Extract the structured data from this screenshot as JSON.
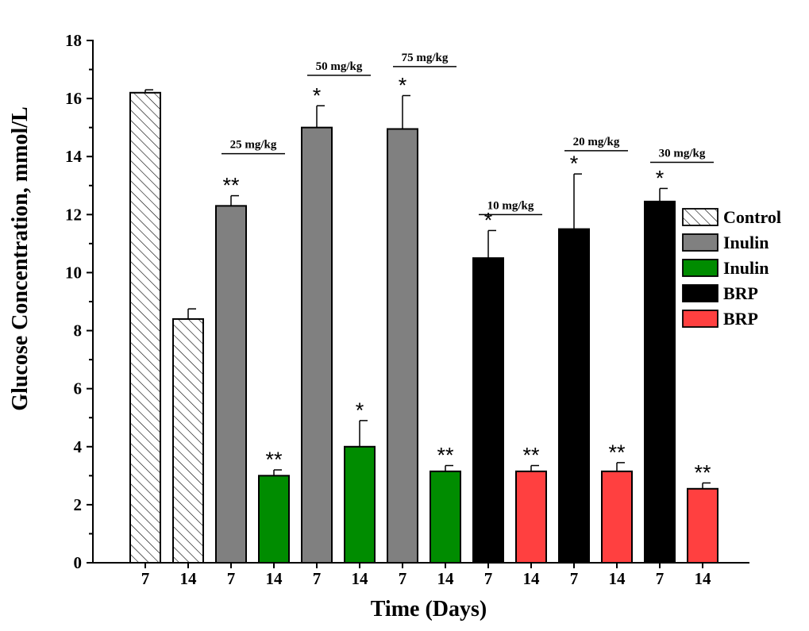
{
  "chart_data": {
    "type": "bar",
    "title": "",
    "xlabel": "Time (Days)",
    "ylabel": "Glucose Concentration, mmol/L",
    "ylim": [
      0,
      18
    ],
    "yticks": [
      0,
      2,
      4,
      6,
      8,
      10,
      12,
      14,
      16,
      18
    ],
    "colors": {
      "Control": "#ffffff",
      "Inulin7": "#808080",
      "Inulin14": "#008c00",
      "BRP7": "#000000",
      "BRP14": "#ff4040"
    },
    "bars": [
      {
        "label": "7",
        "group": "Control",
        "value": 16.2,
        "error": 0.1,
        "sig": ""
      },
      {
        "label": "14",
        "group": "Control",
        "value": 8.4,
        "error": 0.35,
        "sig": ""
      },
      {
        "label": "7",
        "group": "Inulin7",
        "value": 12.3,
        "error": 0.35,
        "sig": "**"
      },
      {
        "label": "14",
        "group": "Inulin14",
        "value": 3.0,
        "error": 0.2,
        "sig": "**"
      },
      {
        "label": "7",
        "group": "Inulin7",
        "value": 15.0,
        "error": 0.75,
        "sig": "*"
      },
      {
        "label": "14",
        "group": "Inulin14",
        "value": 4.0,
        "error": 0.9,
        "sig": "*"
      },
      {
        "label": "7",
        "group": "Inulin7",
        "value": 14.95,
        "error": 1.15,
        "sig": "*"
      },
      {
        "label": "14",
        "group": "Inulin14",
        "value": 3.15,
        "error": 0.2,
        "sig": "**"
      },
      {
        "label": "7",
        "group": "BRP7",
        "value": 10.5,
        "error": 0.95,
        "sig": "*"
      },
      {
        "label": "14",
        "group": "BRP14",
        "value": 3.15,
        "error": 0.2,
        "sig": "**"
      },
      {
        "label": "7",
        "group": "BRP7",
        "value": 11.5,
        "error": 1.9,
        "sig": "*"
      },
      {
        "label": "14",
        "group": "BRP14",
        "value": 3.15,
        "error": 0.3,
        "sig": "**"
      },
      {
        "label": "7",
        "group": "BRP7",
        "value": 12.45,
        "error": 0.45,
        "sig": "*"
      },
      {
        "label": "14",
        "group": "BRP14",
        "value": 2.55,
        "error": 0.2,
        "sig": "**"
      }
    ],
    "dose_labels": [
      {
        "text": "25 mg/kg",
        "bar": 2,
        "level": 14.1
      },
      {
        "text": "50 mg/kg",
        "bar": 4,
        "level": 16.8
      },
      {
        "text": "75 mg/kg",
        "bar": 6,
        "level": 17.1
      },
      {
        "text": "10 mg/kg",
        "bar": 8,
        "level": 12.0
      },
      {
        "text": "20 mg/kg",
        "bar": 10,
        "level": 14.2
      },
      {
        "text": "30 mg/kg",
        "bar": 12,
        "level": 13.8
      }
    ],
    "legend": {
      "position": "right",
      "entries": [
        {
          "label": "Control",
          "group": "Control"
        },
        {
          "label": "Inulin",
          "group": "Inulin7"
        },
        {
          "label": "Inulin",
          "group": "Inulin14"
        },
        {
          "label": "BRP",
          "group": "BRP7"
        },
        {
          "label": "BRP",
          "group": "BRP14"
        }
      ]
    }
  }
}
